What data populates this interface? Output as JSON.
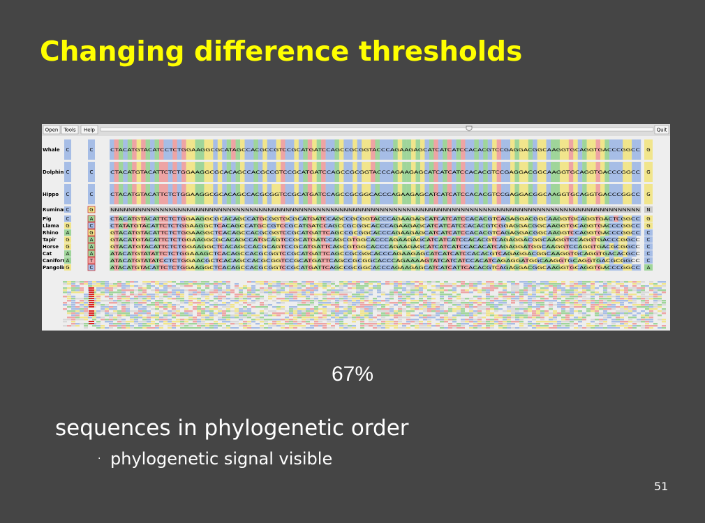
{
  "slide": {
    "title": "Changing difference thresholds",
    "toolbar": {
      "buttons": [
        "Open",
        "Tools",
        "Help"
      ],
      "quit": "Quit"
    },
    "alignment": {
      "rows": [
        {
          "name": "Whale",
          "col1": "C",
          "col2": "C",
          "sequence": "CTACATGTACATCCTCTGGAAGGCGCATAGCCACGCCGTCCGCATGATCCAGCCGCGGTACCCAGAAGAGCATCATCATCCACACGTCCGAGGACGGCAAGGTGCAGGTGACCCGGCC",
          "end": "G"
        },
        {
          "name": "Dolphin",
          "col1": "C",
          "col2": "C",
          "sequence": "CTACATGTACATTCTCTGGAAGGCGCACAGCCACGCCGTCCGCATGATCCAGCCGCGGTACCCAGAAGAGCATCATCATCCACACGTCCGAGGACGGCAAGGTGCAGGTGACCCGGCC",
          "end": "G"
        },
        {
          "name": "Hippo",
          "col1": "C",
          "col2": "C",
          "sequence": "CTACATGTACATTCTCTGGAAGGCGCACAGCCACGCGGTCCGCATGATCCAGCCGCGGCACCCAGAAGAGCATCATCATCCACACGTCCGAGGACGGCAAGGTGCAGGTGACCCGGCC",
          "end": "G"
        },
        {
          "name": "Ruminant",
          "col1": "C",
          "col2": "G",
          "sequence": "NNNNNNNNNNNNNNNNNNNNNNNNNNNNNNNNNNNNNNNNNNNNNNNNNNNNNNNNNNNNNNNNNNNNNNNNNNNNNNNNNNNNNNNNNNNNNNNNNNNNNNNNNNNNNNNNNNNNNN",
          "end": "N"
        },
        {
          "name": "Pig",
          "col1": "C",
          "col2": "A",
          "sequence": "CTACATGTACATTCTCTGGAAGGCGCACAGCCATGCGGTGCGCATGATCCAGCCGCGGTACCCAGAAGAGCATCATCATCCACACGTCAGAGGACGGCAAGGTGCAGGTGACTCGGCC",
          "end": "G"
        },
        {
          "name": "Llama",
          "col1": "G",
          "col2": "C",
          "sequence": "CTATATGTACATTCTCTGGAAGGCTCACAGCCATGCCGTCCGCATGATCCAGCCGCGGCACCCAGAAGAGCATCATCATCCACACGTCGGAGGACGGCAAGGTGCAGGTGACCCGGCC",
          "end": "G"
        },
        {
          "name": "Rhino",
          "col1": "A",
          "col2": "G",
          "sequence": "GTACATGTACATTCTCTGGAAGGCTCACAGCCACGCGGTCCGCATGATTCAGCCGCGGCACCCAGAAGAGCATCATCATCCACACGTCAGAGGACGGCAAGGTCCAGGTGACCCGGCC",
          "end": "C"
        },
        {
          "name": "Tapir",
          "col1": "G",
          "col2": "A",
          "sequence": "GTACATGTACATTCTCTGGAAGGCGCACAGCCATGCAGTCCGCATGATCCAGCGTGGCACCCAGAAGAGCATCATCATCCACACGTCAGAGGACGGCAAGGTCCAGGTGACCCGGCC",
          "end": "C"
        },
        {
          "name": "Horse",
          "col1": "G",
          "col2": "A",
          "sequence": "GTACATGTACATTCTCTGGAAGGCTCACAGCCACGCAGTCCGCATGATTCAGCGTGGCACCCAGAAGAGCATCATCATCCACACATCAGAGGATGGCAAGGTCCAGGTGACGCGGCC",
          "end": "C"
        },
        {
          "name": "Cat",
          "col1": "A",
          "col2": "A",
          "sequence": "ATACATGTATATTCTCTGGAAAGCTCACAGCCACGCGGTCCGCATGATTCAGCCGCGGCACCCAGAAGAGCATCATCATCCACACGTCAGAGGACGGCAAGGTGCAGGTGACACGCC",
          "end": "C"
        },
        {
          "name": "Caniform",
          "col1": "A",
          "col2": "T",
          "sequence": "ATACATGTATATCCTCTGGAACGCTCACAGCCACGCGGTCCGCATGATTCAGCCGCGGCACCCAGAAAAGTATCATCATCCACATCAGAGGATGGCAAGGTGCAGGTGACGCGGCC",
          "end": "C"
        },
        {
          "name": "Pangolin",
          "col1": "G",
          "col2": "C",
          "sequence": "ATACATGTACATTCTCTGGAAGGCTCACAGCCACGCGGTCCGCATGATTCAGCCGCGGCACCCAGAAGAGCATCATCATTCACACGTCAGAGGACGGCAAGGTGCAGGTGACCCGGCC",
          "end": "A"
        }
      ]
    },
    "threshold": "67%",
    "bullet": "sequences in phylogenetic order",
    "sub_bullet": "phylogenetic signal visible",
    "page_number": "51"
  }
}
